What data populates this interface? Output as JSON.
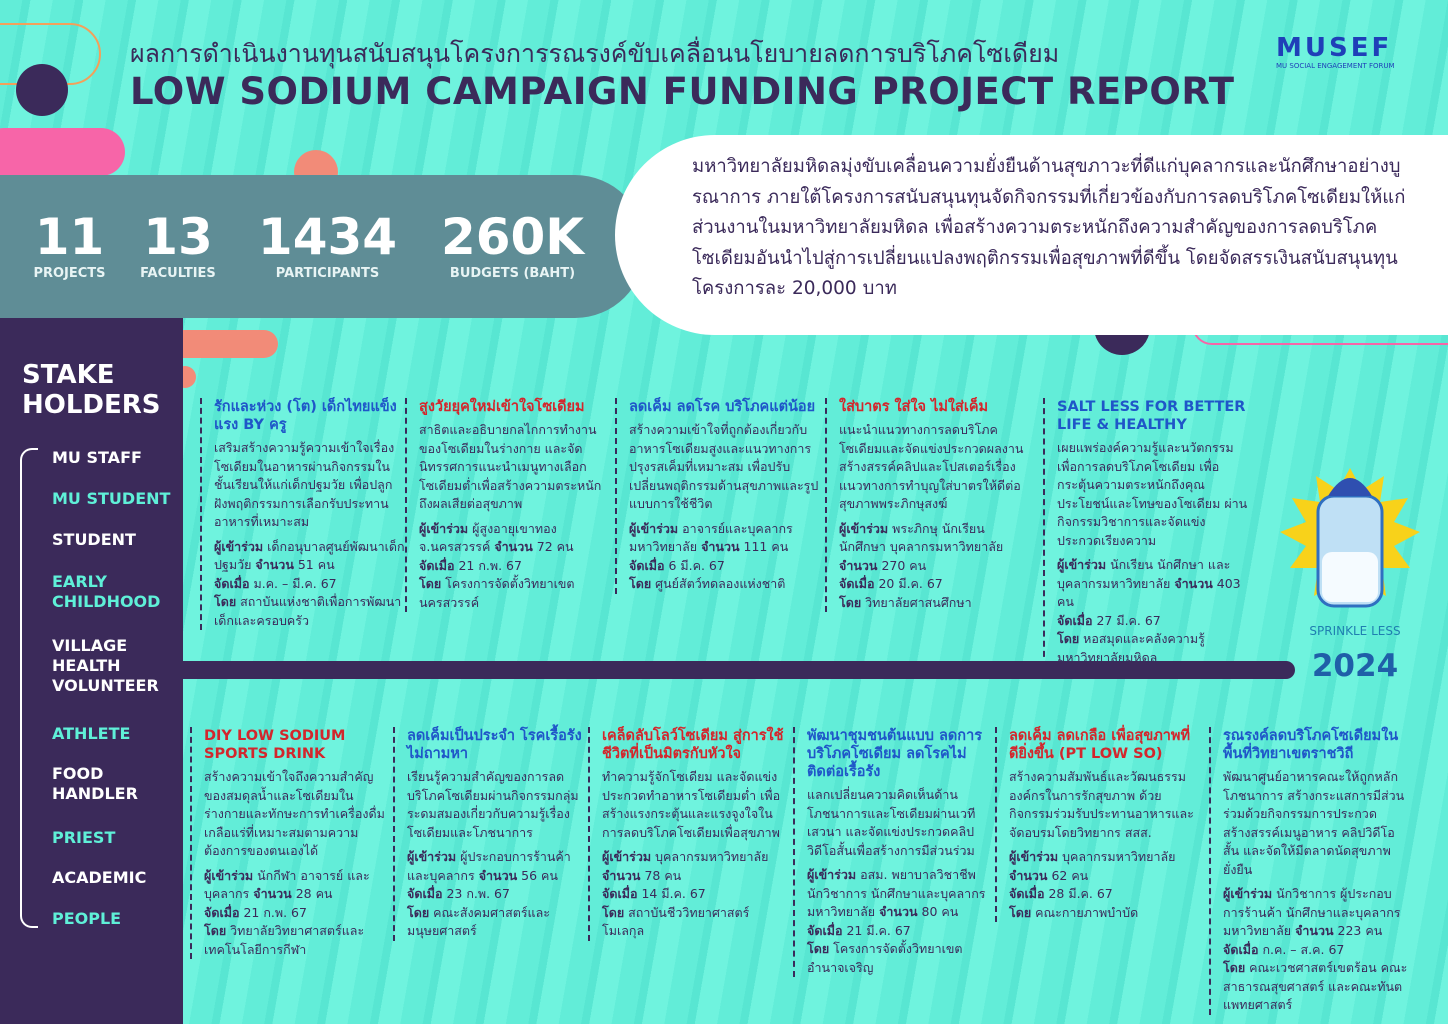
{
  "header": {
    "title_th": "ผลการดำเนินงานทุนสนับสนุนโครงการรณรงค์ขับเคลื่อนนโยบายลดการบริโภคโซเดียม",
    "title_en": "LOW SODIUM CAMPAIGN FUNDING PROJECT REPORT",
    "logo": "MUSEF",
    "logo_sub": "MU SOCIAL ENGAGEMENT FORUM"
  },
  "stats": [
    {
      "value": "11",
      "label": "PROJECTS"
    },
    {
      "value": "13",
      "label": "FACULTIES"
    },
    {
      "value": "1434",
      "label": "PARTICIPANTS"
    },
    {
      "value": "260K",
      "label": "BUDGETS (BAHT)"
    }
  ],
  "intro": "มหาวิทยาลัยมหิดลมุ่งขับเคลื่อนความยั่งยืนด้านสุขภาวะที่ดีแก่บุคลากรและนักศึกษาอย่างบูรณาการ ภายใต้โครงการสนับสนุนทุนจัดกิจกรรมที่เกี่ยวข้องกับการลดบริโภคโซเดียมให้แก่ส่วนงานในมหาวิทยาลัยมหิดล เพื่อสร้างความตระหนักถึงความสำคัญของการลดบริโภคโซเดียมอันนำไปสู่การเปลี่ยนแปลงพฤติกรรมเพื่อสุขภาพที่ดีขึ้น โดยจัดสรรเงินสนับสนุนทุนโครงการละ 20,000 บาท",
  "stakeholders": {
    "title": "STAKE\nHOLDERS",
    "items": [
      {
        "name": "MU STAFF",
        "color": "#ffffff"
      },
      {
        "name": "MU STUDENT",
        "color": "#5ff0d8"
      },
      {
        "name": "STUDENT",
        "color": "#ffffff"
      },
      {
        "name": "EARLY\nCHILDHOOD",
        "color": "#5ff0d8"
      },
      {
        "name": "VILLAGE\nHEALTH\nVOLUNTEER",
        "color": "#ffffff"
      },
      {
        "name": "ATHLETE",
        "color": "#5ff0d8"
      },
      {
        "name": "FOOD\nHANDLER",
        "color": "#ffffff"
      },
      {
        "name": "PRIEST",
        "color": "#5ff0d8"
      },
      {
        "name": "ACADEMIC",
        "color": "#ffffff"
      },
      {
        "name": "PEOPLE",
        "color": "#5ff0d8"
      }
    ]
  },
  "projects_top": [
    {
      "title": "รักและห่วง (โต) เด็กไทยแข็งแรง BY ครู",
      "title_color": "#1f56c8",
      "desc": "เสริมสร้างความรู้ความเข้าใจเรื่องโซเดียมในอาหารผ่านกิจกรรมในชั้นเรียนให้แก่เด็กปฐมวัย เพื่อปลูกฝังพฤติกรรมการเลือกรับประทานอาหารที่เหมาะสม",
      "lines": [
        [
          {
            "k": "ผู้เข้าร่วม",
            "v": "เด็กอนุบาลศูนย์พัฒนาเด็กปฐมวัย"
          },
          {
            "k": "จำนวน",
            "v": "51 คน"
          }
        ],
        [
          {
            "k": "จัดเมื่อ",
            "v": "ม.ค. – มี.ค. 67"
          }
        ],
        [
          {
            "k": "โดย",
            "v": "สถาบันแห่งชาติเพื่อการพัฒนาเด็กและครอบครัว"
          }
        ]
      ]
    },
    {
      "title": "สูงวัยยุคใหม่เข้าใจโซเดียม",
      "title_color": "#d3262c",
      "desc": "สาธิตและอธิบายกลไกการทำงานของโซเดียมในร่างกาย และจัดนิทรรศการแนะนำเมนูทางเลือกโซเดียมต่ำเพื่อสร้างความตระหนักถึงผลเสียต่อสุขภาพ",
      "lines": [
        [
          {
            "k": "ผู้เข้าร่วม",
            "v": "ผู้สูงอายุเขาทอง จ.นครสวรรค์"
          },
          {
            "k": "จำนวน",
            "v": "72 คน"
          }
        ],
        [
          {
            "k": "จัดเมื่อ",
            "v": "21 ก.พ. 67"
          }
        ],
        [
          {
            "k": "โดย",
            "v": "โครงการจัดตั้งวิทยาเขตนครสวรรค์"
          }
        ]
      ]
    },
    {
      "title": "ลดเค็ม ลดโรค บริโภคแต่น้อย",
      "title_color": "#1f56c8",
      "desc": "สร้างความเข้าใจที่ถูกต้องเกี่ยวกับอาหารโซเดียมสูงและแนวทางการปรุงรสเค็มที่เหมาะสม เพื่อปรับเปลี่ยนพฤติกรรมด้านสุขภาพและรูปแบบการใช้ชีวิต",
      "lines": [
        [
          {
            "k": "ผู้เข้าร่วม",
            "v": "อาจารย์และบุคลากรมหาวิทยาลัย"
          },
          {
            "k": "จำนวน",
            "v": "111 คน"
          }
        ],
        [
          {
            "k": "จัดเมื่อ",
            "v": "6 มี.ค. 67"
          }
        ],
        [
          {
            "k": "โดย",
            "v": "ศูนย์สัตว์ทดลองแห่งชาติ"
          }
        ]
      ]
    },
    {
      "title": "ใส่บาตร ใส่ใจ ไม่ใส่เค็ม",
      "title_color": "#d3262c",
      "desc": "แนะนำแนวทางการลดบริโภคโซเดียมและจัดแข่งประกวดผลงานสร้างสรรค์คลิปและโปสเตอร์เรื่องแนวทางการทำบุญใส่บาตรให้ดีต่อสุขภาพพระภิกษุสงฆ์",
      "lines": [
        [
          {
            "k": "ผู้เข้าร่วม",
            "v": "พระภิกษุ นักเรียน นักศึกษา บุคลากรมหาวิทยาลัย"
          },
          {
            "k": "จำนวน",
            "v": "270 คน"
          }
        ],
        [
          {
            "k": "จัดเมื่อ",
            "v": "20 มี.ค. 67"
          }
        ],
        [
          {
            "k": "โดย",
            "v": "วิทยาลัยศาสนศึกษา"
          }
        ]
      ]
    },
    {
      "title": "SALT LESS FOR BETTER LIFE & HEALTHY",
      "title_color": "#1f56c8",
      "desc": "เผยแพร่องค์ความรู้และนวัตกรรมเพื่อการลดบริโภคโซเดียม เพื่อกระตุ้นความตระหนักถึงคุณประโยชน์และโทษของโซเดียม ผ่านกิจกรรมวิชาการและจัดแข่งประกวดเรียงความ",
      "lines": [
        [
          {
            "k": "ผู้เข้าร่วม",
            "v": "นักเรียน นักศึกษา และบุคลากรมหาวิทยาลัย"
          },
          {
            "k": "จำนวน",
            "v": "403 คน"
          }
        ],
        [
          {
            "k": "จัดเมื่อ",
            "v": "27 มี.ค. 67"
          }
        ],
        [
          {
            "k": "โดย",
            "v": "หอสมุดและคลังความรู้มหาวิทยาลัยมหิดล"
          }
        ]
      ]
    }
  ],
  "projects_bottom": [
    {
      "title": "DIY LOW SODIUM SPORTS DRINK",
      "title_color": "#d3262c",
      "desc": "สร้างความเข้าใจถึงความสำคัญของสมดุลน้ำและโซเดียมในร่างกายและทักษะการทำเครื่องดื่มเกลือแร่ที่เหมาะสมตามความต้องการของตนเองได้",
      "lines": [
        [
          {
            "k": "ผู้เข้าร่วม",
            "v": "นักกีฬา อาจารย์ และบุคลากร"
          },
          {
            "k": "จำนวน",
            "v": "28 คน"
          }
        ],
        [
          {
            "k": "จัดเมื่อ",
            "v": "21 ก.พ. 67"
          }
        ],
        [
          {
            "k": "โดย",
            "v": "วิทยาลัยวิทยาศาสตร์และเทคโนโลยีการกีฬา"
          }
        ]
      ]
    },
    {
      "title": "ลดเค็มเป็นประจำ โรคเรื้อรังไม่ถามหา",
      "title_color": "#1f56c8",
      "desc": "เรียนรู้ความสำคัญของการลดบริโภคโซเดียมผ่านกิจกรรมกลุ่ม ระดมสมองเกี่ยวกับความรู้เรื่องโซเดียมและโภชนาการ",
      "lines": [
        [
          {
            "k": "ผู้เข้าร่วม",
            "v": "ผู้ประกอบการร้านค้าและบุคลากร"
          },
          {
            "k": "จำนวน",
            "v": "56 คน"
          }
        ],
        [
          {
            "k": "จัดเมื่อ",
            "v": "23 ก.พ. 67"
          }
        ],
        [
          {
            "k": "โดย",
            "v": "คณะสังคมศาสตร์และมนุษยศาสตร์"
          }
        ]
      ]
    },
    {
      "title": "เคล็ดลับโลว์โซเดียม สู่การใช้ชีวิตที่เป็นมิตรกับหัวใจ",
      "title_color": "#d3262c",
      "desc": "ทำความรู้จักโซเดียม และจัดแข่งประกวดทำอาหารโซเดียมต่ำ เพื่อสร้างแรงกระตุ้นและแรงจูงใจในการลดบริโภคโซเดียมเพื่อสุขภาพ",
      "lines": [
        [
          {
            "k": "ผู้เข้าร่วม",
            "v": "บุคลากรมหาวิทยาลัย"
          },
          {
            "k": "จำนวน",
            "v": "78 คน"
          }
        ],
        [
          {
            "k": "จัดเมื่อ",
            "v": "14 มี.ค. 67"
          }
        ],
        [
          {
            "k": "โดย",
            "v": "สถาบันชีววิทยาศาสตร์โมเลกุล"
          }
        ]
      ]
    },
    {
      "title": "พัฒนาชุมชนต้นแบบ ลดการบริโภคโซเดียม ลดโรคไม่ติดต่อเรื้อรัง",
      "title_color": "#1f56c8",
      "desc": "แลกเปลี่ยนความคิดเห็นด้านโภชนาการและโซเดียมผ่านเวทีเสวนา และจัดแข่งประกวดคลิปวิดีโอสั้นเพื่อสร้างการมีส่วนร่วม",
      "lines": [
        [
          {
            "k": "ผู้เข้าร่วม",
            "v": "อสม. พยาบาลวิชาชีพ นักวิชาการ นักศึกษาและบุคลากรมหาวิทยาลัย"
          },
          {
            "k": "จำนวน",
            "v": "80 คน"
          }
        ],
        [
          {
            "k": "จัดเมื่อ",
            "v": "21 มี.ค. 67"
          }
        ],
        [
          {
            "k": "โดย",
            "v": "โครงการจัดตั้งวิทยาเขตอำนาจเจริญ"
          }
        ]
      ]
    },
    {
      "title": "ลดเค็ม ลดเกลือ เพื่อสุขภาพที่ดียิ่งขึ้น (PT LOW SO)",
      "title_color": "#d3262c",
      "desc": "สร้างความสัมพันธ์และวัฒนธรรมองค์กรในการรักสุขภาพ ด้วยกิจกรรมร่วมรับประทานอาหารและจัดอบรมโดยวิทยากร สสส.",
      "lines": [
        [
          {
            "k": "ผู้เข้าร่วม",
            "v": "บุคลากรมหาวิทยาลัย"
          },
          {
            "k": "จำนวน",
            "v": "62 คน"
          }
        ],
        [
          {
            "k": "จัดเมื่อ",
            "v": "28 มี.ค. 67"
          }
        ],
        [
          {
            "k": "โดย",
            "v": "คณะกายภาพบำบัด"
          }
        ]
      ]
    },
    {
      "title": "รณรงค์ลดบริโภคโซเดียมในพื้นที่วิทยาเขตราชวิถี",
      "title_color": "#1f56c8",
      "desc": "พัฒนาศูนย์อาหารคณะให้ถูกหลักโภชนาการ สร้างกระแสการมีส่วนร่วมด้วยกิจกรรมการประกวดสร้างสรรค์เมนูอาหาร คลิปวิดีโอสั้น และจัดให้มีตลาดนัดสุขภาพยั่งยืน",
      "lines": [
        [
          {
            "k": "ผู้เข้าร่วม",
            "v": "นักวิชาการ ผู้ประกอบการร้านค้า นักศึกษาและบุคลากรมหาวิทยาลัย"
          },
          {
            "k": "จำนวน",
            "v": "223 คน"
          }
        ],
        [
          {
            "k": "จัดเมื่อ",
            "v": "ก.ค. – ส.ค. 67"
          }
        ],
        [
          {
            "k": "โดย",
            "v": "คณะเวชศาสตร์เขตร้อน คณะสาธารณสุขศาสตร์ และคณะทันตแพทยศาสตร์"
          }
        ]
      ]
    }
  ],
  "badge": {
    "caption": "SPRINKLE LESS",
    "year": "2024"
  }
}
